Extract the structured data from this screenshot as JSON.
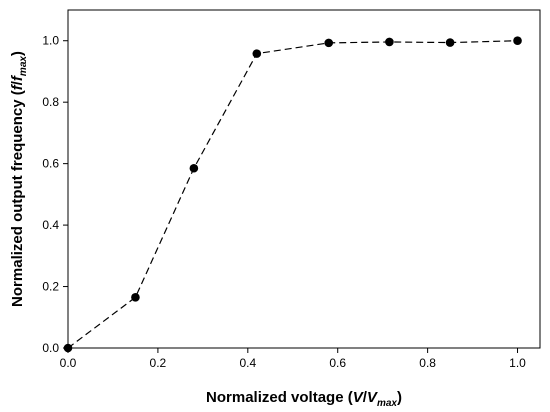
{
  "chart_data": {
    "type": "line",
    "title": "",
    "xlabel": {
      "prefix": "Normalized voltage (",
      "var": "V",
      "slash": "/",
      "var2": "V",
      "sub": "max",
      "suffix": ")"
    },
    "ylabel": {
      "prefix": "Normalized output frequency (",
      "var": "f",
      "slash": "/",
      "var2": "f",
      "sub": "max",
      "suffix": ")"
    },
    "xlim": [
      0.0,
      1.05
    ],
    "ylim": [
      0.0,
      1.1
    ],
    "x_ticks": [
      "0.0",
      "0.2",
      "0.4",
      "0.6",
      "0.8",
      "1.0"
    ],
    "y_ticks": [
      "0.0",
      "0.2",
      "0.4",
      "0.6",
      "0.8",
      "1.0"
    ],
    "grid": false,
    "legend": "none",
    "series": [
      {
        "line_style": "dashed",
        "marker": "filled-circle",
        "color": "#000000",
        "points": [
          {
            "x": 0.0,
            "y": 0.0
          },
          {
            "x": 0.15,
            "y": 0.165
          },
          {
            "x": 0.28,
            "y": 0.585
          },
          {
            "x": 0.42,
            "y": 0.958
          },
          {
            "x": 0.58,
            "y": 0.993
          },
          {
            "x": 0.715,
            "y": 0.996
          },
          {
            "x": 0.85,
            "y": 0.994
          },
          {
            "x": 1.0,
            "y": 1.0
          }
        ]
      }
    ]
  }
}
